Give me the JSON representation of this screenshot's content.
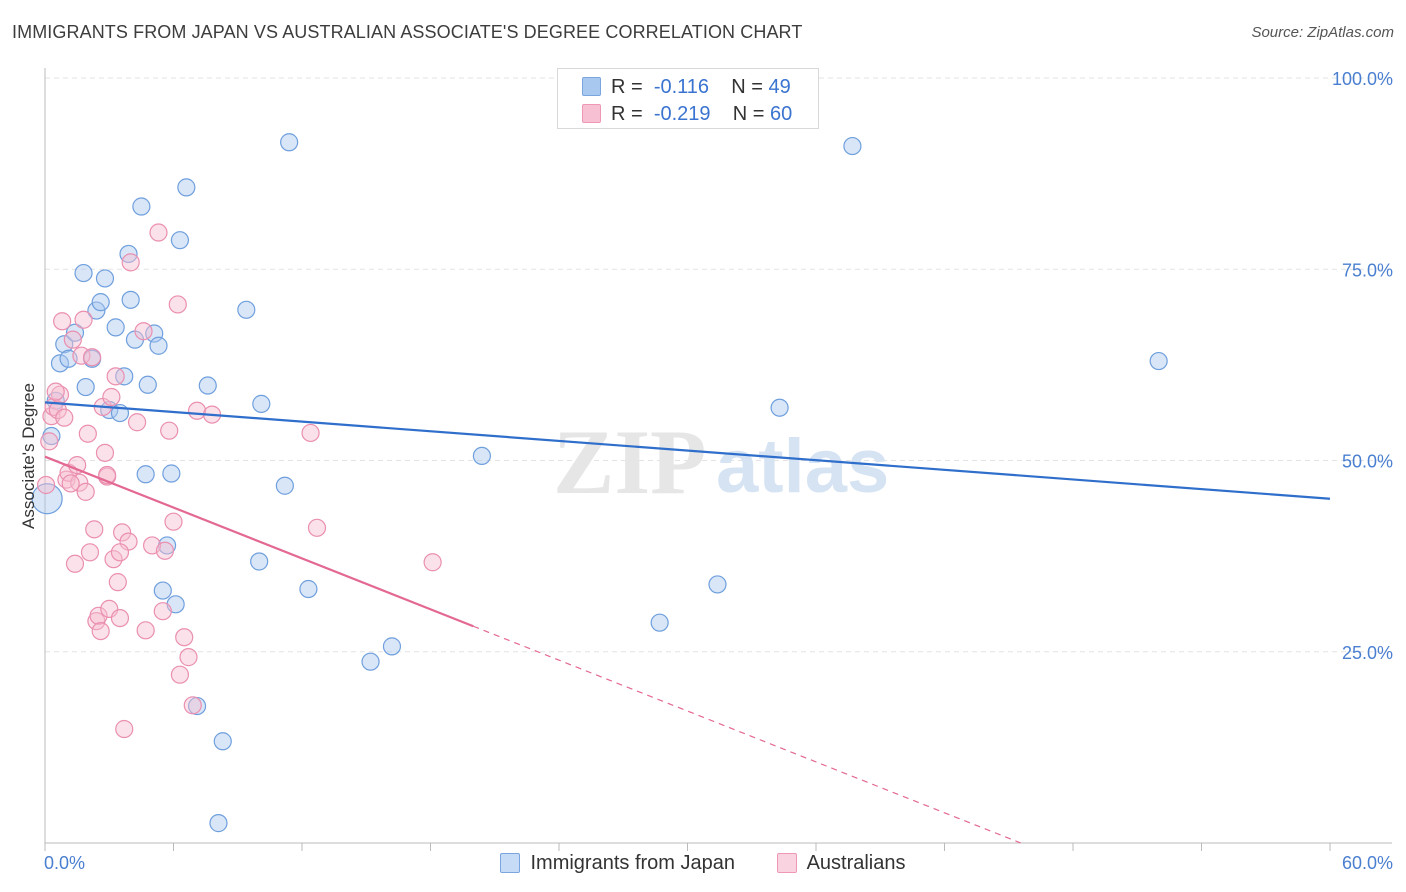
{
  "title": "IMMIGRANTS FROM JAPAN VS AUSTRALIAN ASSOCIATE'S DEGREE CORRELATION CHART",
  "source": "Source: ZipAtlas.com",
  "watermark": {
    "zip": "ZIP",
    "atlas": "atlas"
  },
  "legend": {
    "rows": [
      {
        "r_label": "R =",
        "r_value": "-0.116",
        "n_label": "N =",
        "n_value": "49",
        "color": "#a9c8f0",
        "border": "#7aa6e0"
      },
      {
        "r_label": "R =",
        "r_value": "-0.219",
        "n_label": "N =",
        "n_value": "60",
        "color": "#f7c1d3",
        "border": "#ee98b6"
      }
    ]
  },
  "bottom_legend": [
    {
      "label": "Immigrants from Japan",
      "color": "#c6dcf6",
      "border": "#7aa6e0"
    },
    {
      "label": "Australians",
      "color": "#f9d3e0",
      "border": "#ee98b6"
    }
  ],
  "colors": {
    "blue_fill": "#a9c8f0",
    "blue_stroke": "#6f9fdd",
    "blue_line": "#2f6fcb",
    "pink_fill": "#f7bfd1",
    "pink_stroke": "#ea8fb0",
    "pink_line": "#e36893",
    "grid": "#e3e3e3",
    "tick_text": "#4a7fd0"
  },
  "chart_data": {
    "type": "scatter",
    "title": "IMMIGRANTS FROM JAPAN VS AUSTRALIAN ASSOCIATE'S DEGREE CORRELATION CHART",
    "xlabel": "",
    "ylabel": "Associate's Degree",
    "xlim": [
      0,
      60
    ],
    "ylim": [
      0,
      100
    ],
    "x_tick_labels": [
      "0.0%",
      "60.0%"
    ],
    "y_tick_labels": [
      "100.0%",
      "75.0%",
      "50.0%",
      "25.0%"
    ],
    "y_ticks": [
      100,
      75,
      50,
      25
    ],
    "series": [
      {
        "name": "Immigrants from Japan",
        "r": -0.116,
        "n": 49,
        "trend": {
          "x0": 0,
          "y0": 57.6,
          "x1": 60,
          "y1": 45.0,
          "solid_to": 60
        },
        "points": [
          [
            0.1,
            45.0
          ],
          [
            0.3,
            53.2
          ],
          [
            0.5,
            57.8
          ],
          [
            0.7,
            62.7
          ],
          [
            0.9,
            65.2
          ],
          [
            1.1,
            63.3
          ],
          [
            1.4,
            66.7
          ],
          [
            1.8,
            74.5
          ],
          [
            1.9,
            59.6
          ],
          [
            2.4,
            69.6
          ],
          [
            2.6,
            70.7
          ],
          [
            2.8,
            73.8
          ],
          [
            2.2,
            63.3
          ],
          [
            3.0,
            56.6
          ],
          [
            3.3,
            67.4
          ],
          [
            3.5,
            56.2
          ],
          [
            3.7,
            61.0
          ],
          [
            3.9,
            77.0
          ],
          [
            4.0,
            71.0
          ],
          [
            4.2,
            65.8
          ],
          [
            4.5,
            83.2
          ],
          [
            4.7,
            48.2
          ],
          [
            4.8,
            59.9
          ],
          [
            5.1,
            66.6
          ],
          [
            5.3,
            65.0
          ],
          [
            5.5,
            33.0
          ],
          [
            5.7,
            38.9
          ],
          [
            5.9,
            48.3
          ],
          [
            6.1,
            31.2
          ],
          [
            6.3,
            78.8
          ],
          [
            6.6,
            85.7
          ],
          [
            7.1,
            17.9
          ],
          [
            7.6,
            59.8
          ],
          [
            8.1,
            2.6
          ],
          [
            8.3,
            13.3
          ],
          [
            9.4,
            69.7
          ],
          [
            10.0,
            36.8
          ],
          [
            10.1,
            57.4
          ],
          [
            11.2,
            46.7
          ],
          [
            11.4,
            91.6
          ],
          [
            12.3,
            33.2
          ],
          [
            15.2,
            23.7
          ],
          [
            16.2,
            25.7
          ],
          [
            20.4,
            50.6
          ],
          [
            28.7,
            28.8
          ],
          [
            31.4,
            33.8
          ],
          [
            34.3,
            56.9
          ],
          [
            37.7,
            91.1
          ],
          [
            52.0,
            63.0
          ]
        ]
      },
      {
        "name": "Australians",
        "r": -0.219,
        "n": 60,
        "trend": {
          "x0": 0,
          "y0": 50.5,
          "x1": 60,
          "y1": -16.0,
          "solid_to": 20.0
        },
        "points": [
          [
            0.05,
            46.8
          ],
          [
            0.2,
            52.5
          ],
          [
            0.3,
            55.8
          ],
          [
            0.4,
            57.0
          ],
          [
            0.6,
            56.6
          ],
          [
            0.7,
            58.6
          ],
          [
            0.8,
            68.2
          ],
          [
            0.9,
            55.6
          ],
          [
            1.0,
            47.5
          ],
          [
            1.1,
            48.4
          ],
          [
            1.3,
            65.8
          ],
          [
            1.4,
            36.5
          ],
          [
            1.5,
            49.4
          ],
          [
            1.6,
            47.1
          ],
          [
            1.7,
            63.7
          ],
          [
            1.8,
            68.4
          ],
          [
            1.9,
            45.9
          ],
          [
            2.0,
            53.5
          ],
          [
            2.1,
            38.0
          ],
          [
            2.2,
            63.5
          ],
          [
            2.3,
            41.0
          ],
          [
            2.4,
            29.0
          ],
          [
            2.5,
            29.7
          ],
          [
            2.6,
            27.7
          ],
          [
            2.7,
            57.0
          ],
          [
            2.8,
            51.0
          ],
          [
            2.9,
            47.9
          ],
          [
            3.0,
            30.6
          ],
          [
            3.1,
            58.3
          ],
          [
            3.2,
            37.1
          ],
          [
            3.3,
            61.0
          ],
          [
            3.4,
            34.1
          ],
          [
            3.5,
            29.4
          ],
          [
            3.6,
            40.6
          ],
          [
            3.7,
            14.9
          ],
          [
            3.9,
            39.4
          ],
          [
            4.0,
            75.9
          ],
          [
            4.3,
            55.0
          ],
          [
            4.6,
            66.9
          ],
          [
            4.7,
            27.8
          ],
          [
            5.0,
            38.9
          ],
          [
            5.3,
            79.8
          ],
          [
            5.5,
            30.3
          ],
          [
            5.6,
            38.2
          ],
          [
            5.8,
            53.9
          ],
          [
            6.0,
            42.0
          ],
          [
            6.2,
            70.4
          ],
          [
            6.3,
            22.0
          ],
          [
            6.5,
            26.9
          ],
          [
            6.7,
            24.3
          ],
          [
            6.9,
            18.0
          ],
          [
            7.1,
            56.5
          ],
          [
            7.8,
            56.0
          ],
          [
            12.4,
            53.6
          ],
          [
            12.7,
            41.2
          ],
          [
            18.1,
            36.7
          ],
          [
            2.9,
            48.1
          ],
          [
            1.2,
            47.0
          ],
          [
            0.5,
            59.0
          ],
          [
            3.5,
            38.0
          ]
        ]
      }
    ]
  }
}
